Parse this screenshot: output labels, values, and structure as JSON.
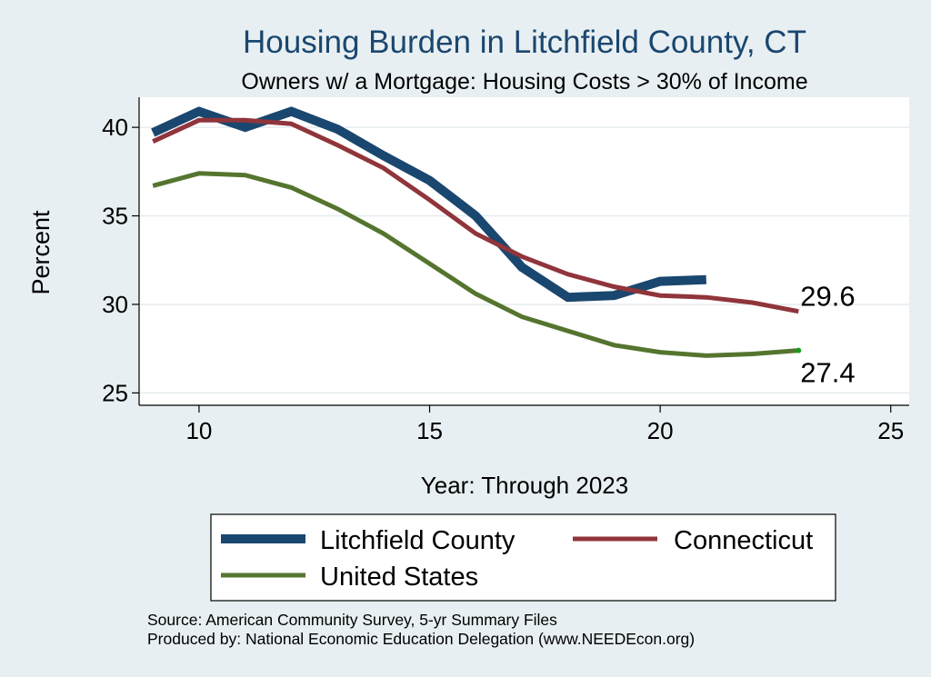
{
  "chart_data": {
    "type": "line",
    "title": "Housing Burden in Litchfield County, CT",
    "subtitle": "Owners w/ a Mortgage: Housing Costs > 30% of Income",
    "xlabel": "Year: Through 2023",
    "ylabel": "Percent",
    "xlim": [
      8.7,
      25.4
    ],
    "ylim": [
      24.3,
      41.7
    ],
    "xticks": [
      10,
      15,
      20,
      25
    ],
    "yticks": [
      25,
      30,
      35,
      40
    ],
    "grid": true,
    "legend_position": "bottom",
    "series": [
      {
        "name": "Litchfield County",
        "color": "#1a476f",
        "x": [
          9,
          10,
          11,
          12,
          13,
          14,
          15,
          16,
          17,
          18,
          19,
          20,
          21
        ],
        "values": [
          39.7,
          40.9,
          40.0,
          40.9,
          39.9,
          38.4,
          37.0,
          35.0,
          32.1,
          30.4,
          30.5,
          31.3,
          31.4
        ]
      },
      {
        "name": "Connecticut",
        "color": "#90353b",
        "x": [
          9,
          10,
          11,
          12,
          13,
          14,
          15,
          16,
          17,
          18,
          19,
          20,
          21,
          22,
          23
        ],
        "values": [
          39.2,
          40.4,
          40.4,
          40.2,
          39.0,
          37.7,
          35.9,
          34.0,
          32.7,
          31.7,
          31.0,
          30.5,
          30.4,
          30.1,
          29.6
        ]
      },
      {
        "name": "United States",
        "color": "#55752f",
        "x": [
          9,
          10,
          11,
          12,
          13,
          14,
          15,
          16,
          17,
          18,
          19,
          20,
          21,
          22,
          23
        ],
        "values": [
          36.7,
          37.4,
          37.3,
          36.6,
          35.4,
          34.0,
          32.3,
          30.6,
          29.3,
          28.5,
          27.7,
          27.3,
          27.1,
          27.2,
          27.4
        ]
      }
    ],
    "annotations": [
      {
        "text": "29.6",
        "series": "Connecticut",
        "x": 23,
        "y": 29.6
      },
      {
        "text": "27.4",
        "series": "United States",
        "x": 23,
        "y": 27.4
      }
    ]
  },
  "source": "Source: American Community Survey, 5-yr Summary Files",
  "produced_by": "Produced by: National Economic Education Delegation (www.NEEDEcon.org)"
}
